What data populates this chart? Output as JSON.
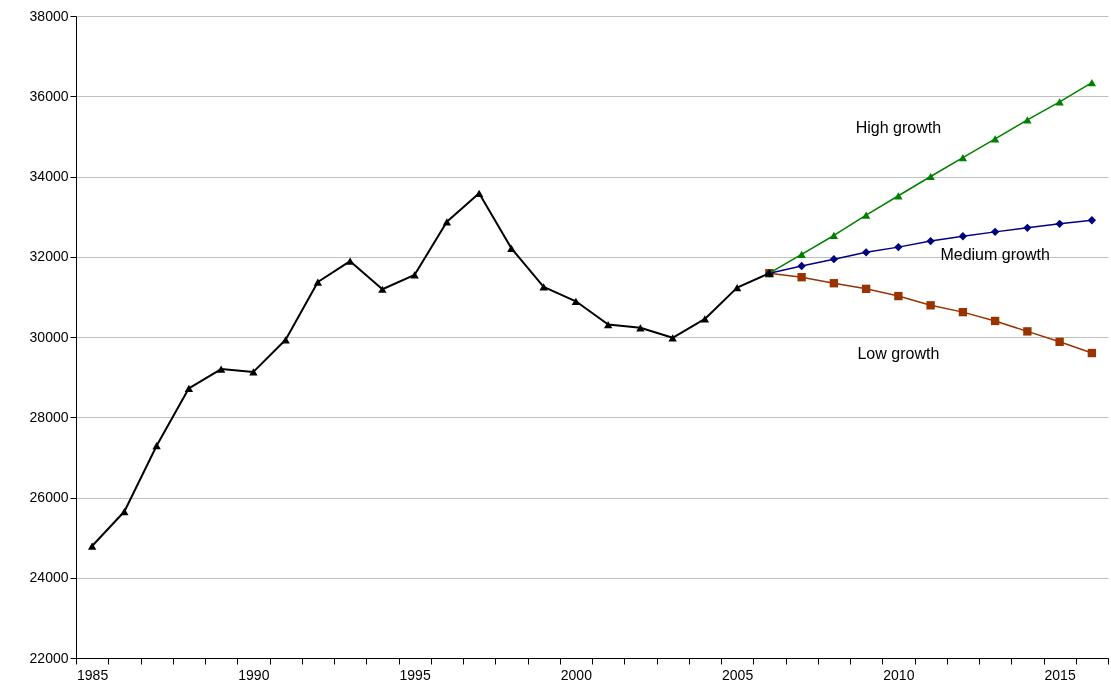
{
  "chart_data": {
    "type": "line",
    "categories": [
      "1985",
      null,
      null,
      null,
      null,
      "1990",
      null,
      null,
      null,
      null,
      "1995",
      null,
      null,
      null,
      null,
      "2000",
      null,
      null,
      null,
      null,
      "2005",
      null,
      null,
      null,
      null,
      "2010",
      null,
      null,
      null,
      null,
      "2015",
      null
    ],
    "series": [
      {
        "color": "#000000",
        "marker": "triangle",
        "values": [
          24790,
          25650,
          27290,
          28720,
          29200,
          29130,
          29930,
          31370,
          31890,
          31190,
          31550,
          32870,
          33580,
          32210,
          31250,
          30890,
          30310,
          30230,
          29980,
          30450,
          31230,
          31590,
          null,
          null,
          null,
          null,
          null,
          null,
          null,
          null,
          null,
          null
        ]
      },
      {
        "name": "High growth",
        "color": "#008000",
        "marker": "triangle",
        "values": [
          null,
          null,
          null,
          null,
          null,
          null,
          null,
          null,
          null,
          null,
          null,
          null,
          null,
          null,
          null,
          null,
          null,
          null,
          null,
          null,
          null,
          31590,
          32060,
          32530,
          33040,
          33520,
          34000,
          34470,
          34940,
          35410,
          35860,
          36340
        ]
      },
      {
        "name": "Medium growth",
        "color": "#000080",
        "marker": "diamond",
        "values": [
          null,
          null,
          null,
          null,
          null,
          null,
          null,
          null,
          null,
          null,
          null,
          null,
          null,
          null,
          null,
          null,
          null,
          null,
          null,
          null,
          null,
          31590,
          31770,
          31940,
          32110,
          32240,
          32390,
          32510,
          32620,
          32720,
          32820,
          32910
        ]
      },
      {
        "name": "Low growth",
        "color": "#993300",
        "marker": "square",
        "values": [
          null,
          null,
          null,
          null,
          null,
          null,
          null,
          null,
          null,
          null,
          null,
          null,
          null,
          null,
          null,
          null,
          null,
          null,
          null,
          null,
          null,
          31590,
          31490,
          31340,
          31200,
          31020,
          30790,
          30620,
          30400,
          30140,
          29880,
          29600
        ]
      }
    ],
    "ylim": [
      22000,
      38000
    ],
    "yticks": [
      22000,
      24000,
      26000,
      28000,
      30000,
      32000,
      34000,
      36000,
      38000
    ],
    "grid": "y",
    "legend": false
  }
}
